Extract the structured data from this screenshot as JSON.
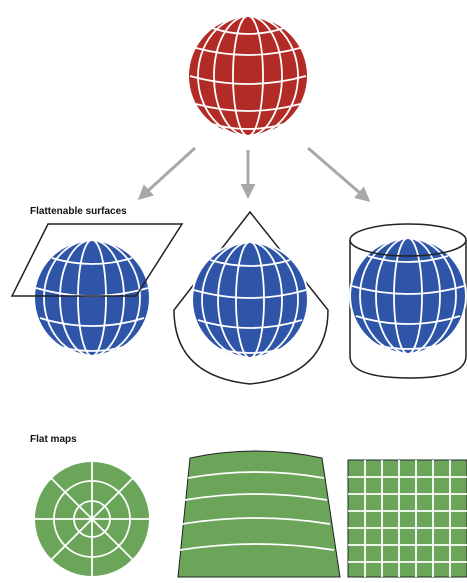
{
  "labels": {
    "flattenable": "Flattenable surfaces",
    "flat_maps": "Flat maps"
  },
  "colors": {
    "globe_red": "#b22b27",
    "globe_blue": "#2e55a8",
    "map_green": "#6aa55a",
    "grid_white": "#ffffff",
    "outline": "#222222",
    "arrow": "#a8a8a8"
  },
  "elements": {
    "source_globe": "globe",
    "arrows": [
      "arrow-to-plane",
      "arrow-to-cone",
      "arrow-to-cylinder"
    ],
    "projection_surfaces": [
      "plane",
      "cone",
      "cylinder"
    ],
    "flat_maps": [
      "azimuthal-map",
      "conic-map",
      "cylindrical-map"
    ]
  }
}
